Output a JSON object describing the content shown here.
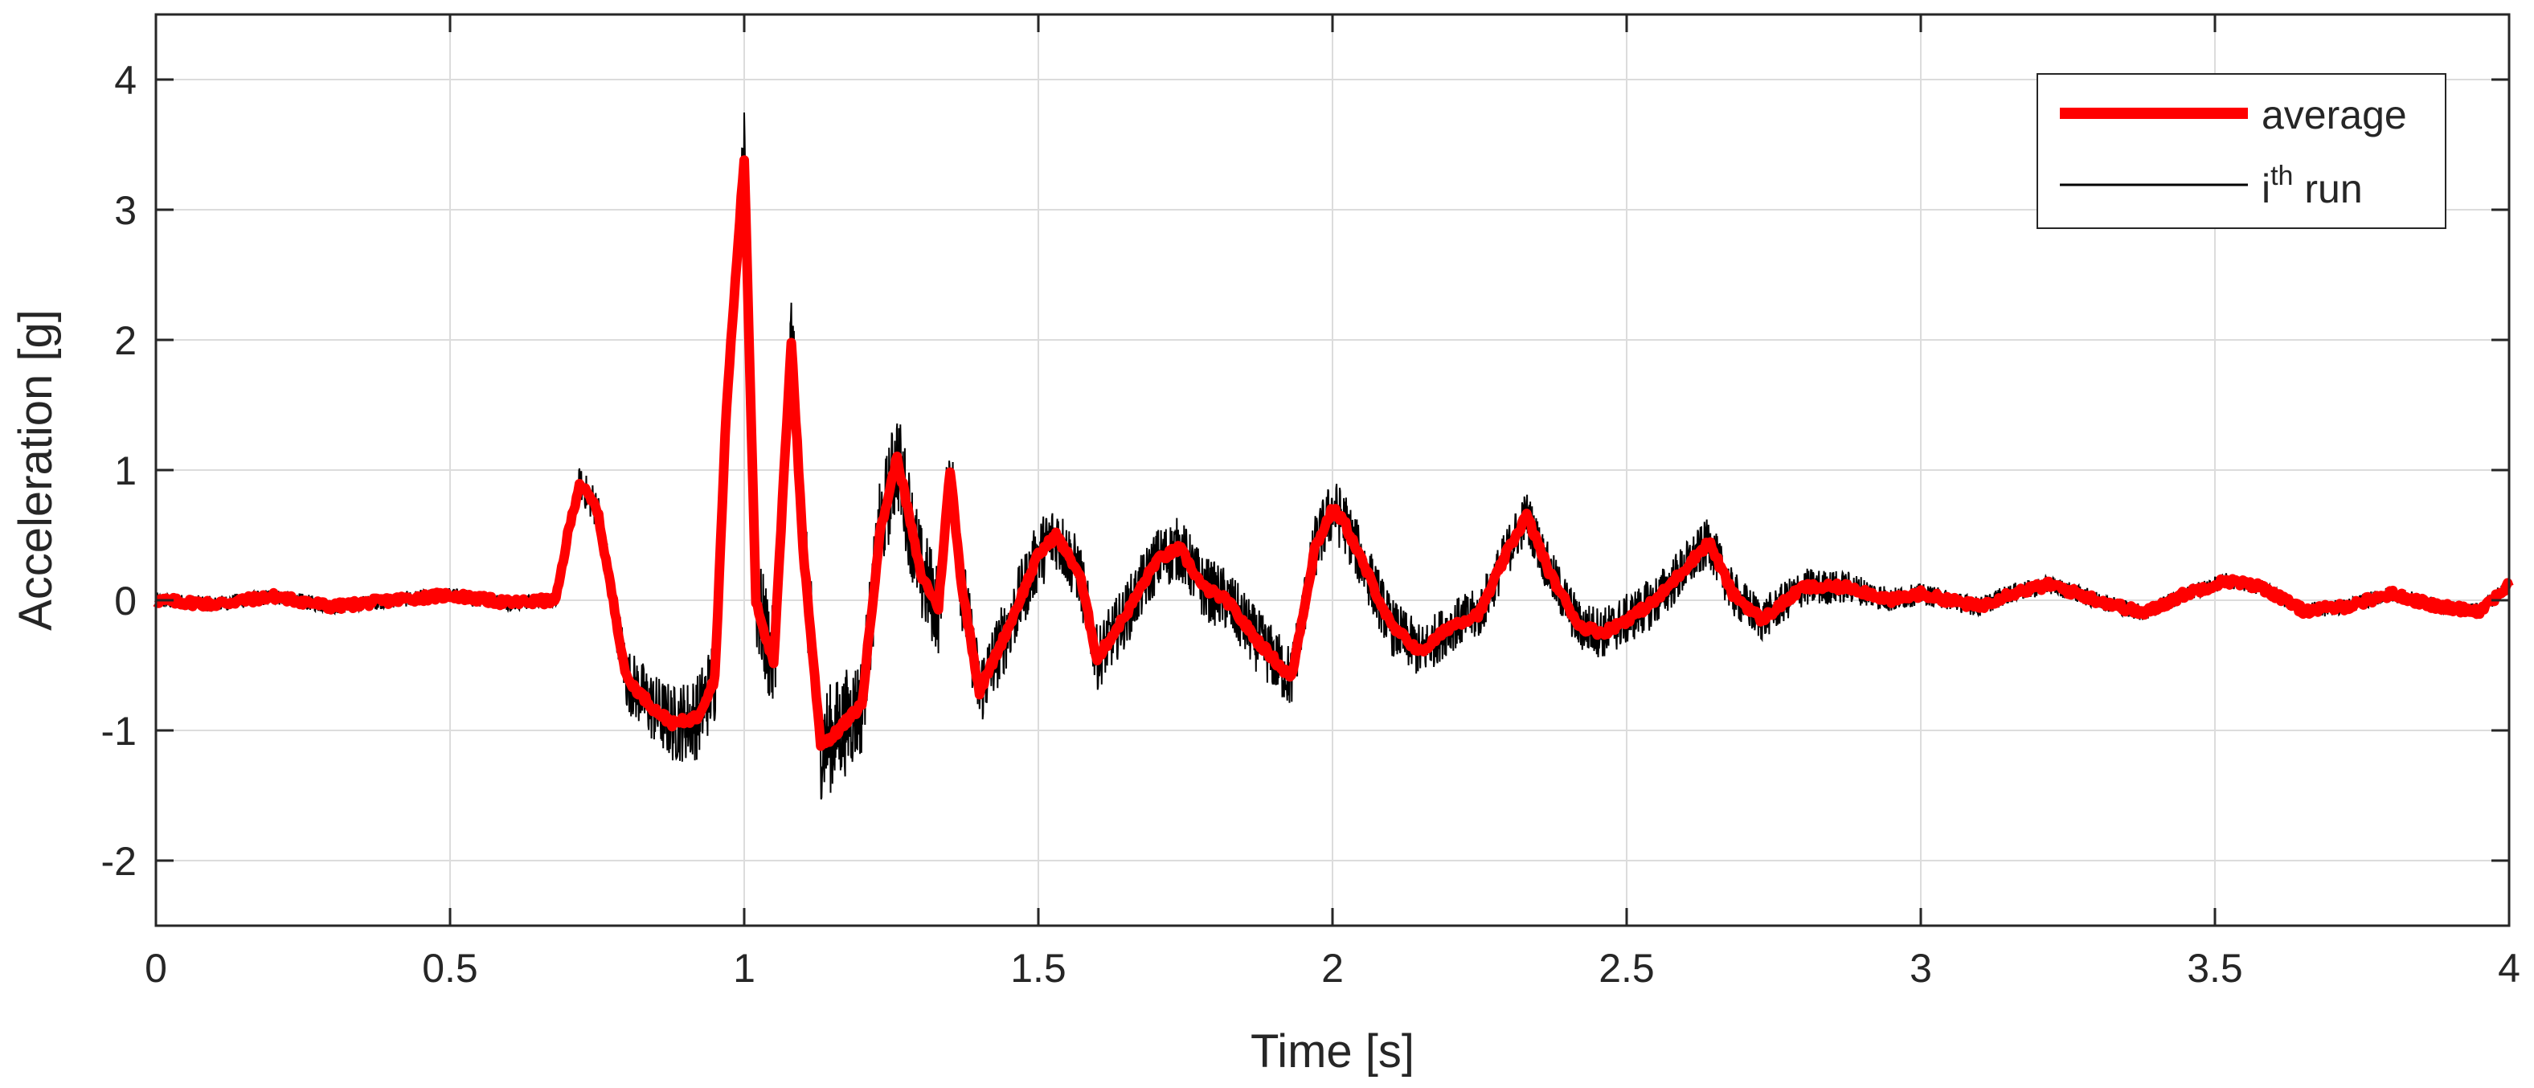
{
  "chart_data": {
    "type": "line",
    "xlabel": "Time [s]",
    "ylabel": "Acceleration [g]",
    "xlim": [
      0,
      4
    ],
    "ylim": [
      -2.5,
      4.5
    ],
    "grid": true,
    "legend_position": "top-right",
    "x_ticks": [
      "0",
      "0.5",
      "1",
      "1.5",
      "2",
      "2.5",
      "3",
      "3.5",
      "4"
    ],
    "x_tick_values": [
      0,
      0.5,
      1,
      1.5,
      2,
      2.5,
      3,
      3.5,
      4
    ],
    "y_ticks": [
      "-2",
      "-1",
      "0",
      "1",
      "2",
      "3",
      "4"
    ],
    "y_tick_values": [
      -2,
      -1,
      0,
      1,
      2,
      3,
      4
    ],
    "colors": {
      "average": "#ff0000",
      "run": "#000000",
      "grid": "#dcdcdc",
      "axis": "#262626"
    },
    "series": [
      {
        "name": "average",
        "legend_text": "average",
        "x": [
          0,
          0.1,
          0.2,
          0.3,
          0.4,
          0.5,
          0.6,
          0.68,
          0.7,
          0.72,
          0.75,
          0.8,
          0.85,
          0.88,
          0.92,
          0.95,
          0.97,
          1.0,
          1.02,
          1.05,
          1.08,
          1.1,
          1.13,
          1.15,
          1.2,
          1.23,
          1.26,
          1.3,
          1.33,
          1.35,
          1.37,
          1.4,
          1.45,
          1.5,
          1.53,
          1.57,
          1.6,
          1.65,
          1.7,
          1.74,
          1.78,
          1.82,
          1.87,
          1.93,
          1.97,
          2.0,
          2.02,
          2.05,
          2.1,
          2.15,
          2.2,
          2.25,
          2.3,
          2.33,
          2.37,
          2.42,
          2.46,
          2.5,
          2.55,
          2.6,
          2.64,
          2.68,
          2.73,
          2.8,
          2.88,
          2.95,
          3.0,
          3.05,
          3.1,
          3.15,
          3.22,
          3.3,
          3.38,
          3.45,
          3.52,
          3.58,
          3.65,
          3.72,
          3.8,
          3.88,
          3.95,
          4.0
        ],
        "values": [
          0,
          -0.03,
          0.03,
          -0.05,
          0.0,
          0.04,
          -0.02,
          0.0,
          0.5,
          0.9,
          0.7,
          -0.6,
          -0.85,
          -0.95,
          -0.9,
          -0.6,
          1.5,
          3.4,
          0.0,
          -0.5,
          2.0,
          0.4,
          -1.1,
          -1.05,
          -0.8,
          0.5,
          1.1,
          0.2,
          -0.05,
          1.0,
          0.1,
          -0.7,
          -0.2,
          0.35,
          0.5,
          0.2,
          -0.45,
          -0.1,
          0.3,
          0.4,
          0.1,
          0.0,
          -0.3,
          -0.6,
          0.4,
          0.7,
          0.6,
          0.3,
          -0.2,
          -0.4,
          -0.2,
          -0.1,
          0.4,
          0.65,
          0.2,
          -0.2,
          -0.25,
          -0.15,
          0.0,
          0.25,
          0.45,
          0.05,
          -0.15,
          0.1,
          0.1,
          0.0,
          0.05,
          0.0,
          -0.05,
          0.05,
          0.12,
          0.0,
          -0.1,
          0.05,
          0.15,
          0.1,
          -0.08,
          -0.05,
          0.05,
          -0.05,
          -0.08,
          0.12
        ]
      },
      {
        "name": "ith run",
        "legend_text": "i",
        "legend_sup": "th",
        "legend_suffix": " run",
        "x": [
          0,
          0.1,
          0.2,
          0.3,
          0.4,
          0.5,
          0.6,
          0.68,
          0.7,
          0.72,
          0.75,
          0.8,
          0.85,
          0.88,
          0.92,
          0.95,
          0.97,
          1.0,
          1.02,
          1.05,
          1.08,
          1.1,
          1.13,
          1.15,
          1.2,
          1.23,
          1.26,
          1.3,
          1.33,
          1.35,
          1.37,
          1.4,
          1.45,
          1.5,
          1.53,
          1.57,
          1.6,
          1.65,
          1.7,
          1.74,
          1.78,
          1.82,
          1.87,
          1.93,
          1.97,
          2.0,
          2.02,
          2.05,
          2.1,
          2.15,
          2.2,
          2.25,
          2.3,
          2.33,
          2.37,
          2.42,
          2.46,
          2.5,
          2.55,
          2.6,
          2.64,
          2.68,
          2.73,
          2.8,
          2.88,
          2.95,
          3.0,
          3.05,
          3.1,
          3.15,
          3.22,
          3.3,
          3.38,
          3.45,
          3.52,
          3.58,
          3.65,
          3.72,
          3.8,
          3.88,
          3.95,
          4.0
        ],
        "values": [
          0,
          -0.03,
          0.03,
          -0.05,
          0.0,
          0.04,
          -0.02,
          0.0,
          0.5,
          0.9,
          0.7,
          -0.6,
          -0.85,
          -0.95,
          -0.9,
          -0.6,
          1.5,
          3.4,
          0.0,
          -0.5,
          2.0,
          0.4,
          -1.1,
          -1.05,
          -0.8,
          0.5,
          1.1,
          0.2,
          -0.05,
          1.0,
          0.1,
          -0.7,
          -0.2,
          0.35,
          0.5,
          0.2,
          -0.45,
          -0.1,
          0.3,
          0.4,
          0.1,
          0.0,
          -0.3,
          -0.6,
          0.4,
          0.7,
          0.6,
          0.3,
          -0.2,
          -0.4,
          -0.2,
          -0.1,
          0.4,
          0.65,
          0.2,
          -0.2,
          -0.25,
          -0.15,
          0.0,
          0.25,
          0.45,
          0.05,
          -0.15,
          0.1,
          0.1,
          0.0,
          0.05,
          0.0,
          -0.05,
          0.05,
          0.12,
          0.0,
          -0.1,
          0.05,
          0.15,
          0.1,
          -0.08,
          -0.05,
          0.05,
          -0.05,
          -0.08,
          0.12
        ],
        "noise_envelope": {
          "x": [
            0,
            0.68,
            0.8,
            0.95,
            1.0,
            1.1,
            1.2,
            1.3,
            1.4,
            1.6,
            1.8,
            2.0,
            2.2,
            2.4,
            2.6,
            2.8,
            3.0,
            3.5,
            4.0
          ],
          "amplitude": [
            0.06,
            0.06,
            0.25,
            0.35,
            0.4,
            0.45,
            0.4,
            0.4,
            0.3,
            0.25,
            0.25,
            0.25,
            0.2,
            0.2,
            0.2,
            0.15,
            0.08,
            0.06,
            0.06
          ]
        }
      }
    ]
  }
}
